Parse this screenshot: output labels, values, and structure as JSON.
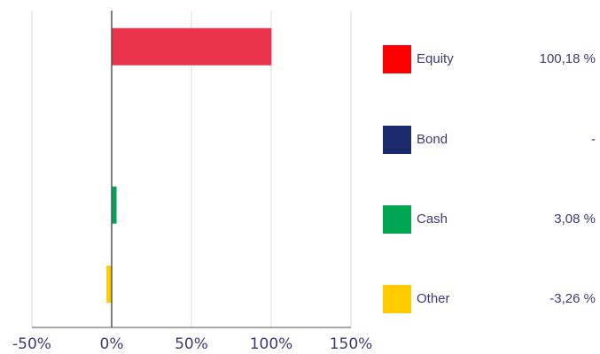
{
  "chart_data": {
    "type": "bar",
    "orientation": "horizontal",
    "categories": [
      "Equity",
      "Bond",
      "Cash",
      "Other"
    ],
    "values": [
      100.18,
      0,
      3.08,
      -3.26
    ],
    "value_labels": [
      "100,18 %",
      "-",
      "3,08 %",
      "-3,26 %"
    ],
    "colors": [
      "#e8334a",
      "#1b2a6b",
      "#00a651",
      "#ffcc00"
    ],
    "legend_colors": [
      "#ff0000",
      "#1b2a6b",
      "#00a651",
      "#ffcc00"
    ],
    "xlim": [
      -50,
      150
    ],
    "xticks": [
      -50,
      0,
      50,
      100,
      150
    ],
    "xtick_labels": [
      "-50%",
      "0%",
      "50%",
      "100%",
      "150%"
    ],
    "grid": true,
    "legend_position": "right"
  }
}
